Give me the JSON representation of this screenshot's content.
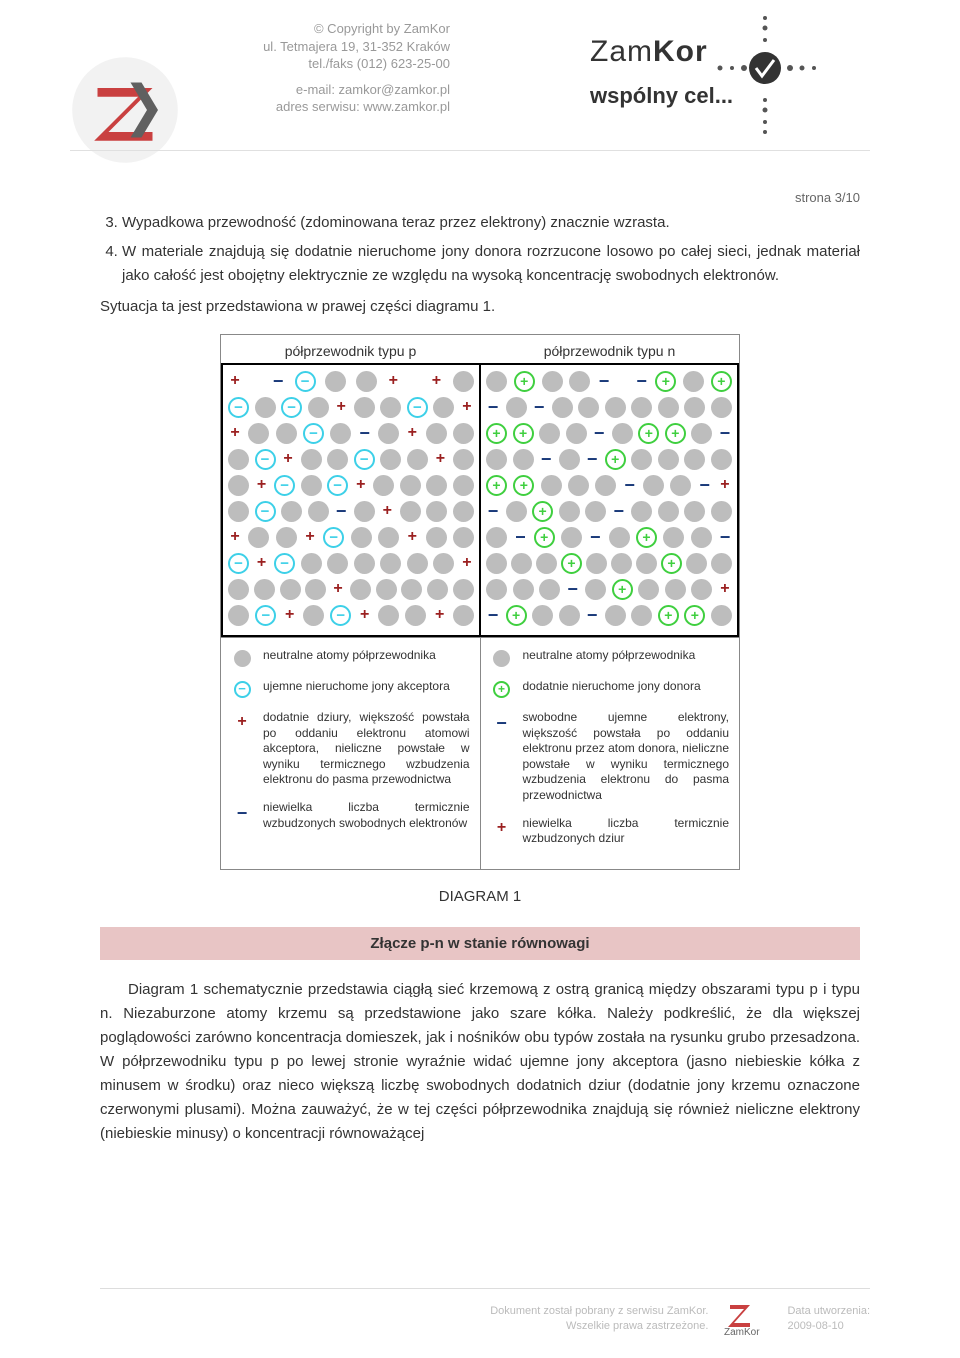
{
  "header": {
    "copyright_lines": [
      "© Copyright by ZamKor",
      "ul. Tetmajera 19, 31-352 Kraków",
      "tel./faks (012) 623-25-00"
    ],
    "contact_lines": [
      "e-mail: zamkor@zamkor.pl",
      "adres serwisu: www.zamkor.pl"
    ],
    "brand_part1": "Zam",
    "brand_part2": "Kor",
    "tagline": "wspólny cel..."
  },
  "page": {
    "page_indicator": "strona 3/10",
    "list_start": 3,
    "items": [
      "Wypadkowa przewodność (zdominowana teraz przez elektrony) znacznie wzrasta.",
      "W materiale znajdują się dodatnie nieruchome jony donora rozrzucone losowo po całej sieci, jednak materiał jako całość jest obojętny elektrycznie ze względu na wysoką koncentrację swobodnych elektronów."
    ],
    "after_list": "Sytuacja ta jest przedstawiona w prawej części diagramu 1."
  },
  "diagram": {
    "title_left": "półprzewodnik typu p",
    "title_right": "półprzewodnik typu n",
    "caption": "DIAGRAM 1",
    "colors": {
      "atom": "#bdbdbd",
      "acceptor": "#3dd0e8",
      "donor": "#3fcf3f",
      "hole": "#9b2020",
      "electron": "#1a3a7a",
      "border": "#000000"
    },
    "left_rows": [
      [
        "plus",
        "sp",
        "minus",
        "acc",
        "atom",
        "atom",
        "plus",
        "sp",
        "plus",
        "atom"
      ],
      [
        "acc",
        "atom",
        "acc",
        "atom",
        "plus",
        "atom",
        "atom",
        "acc",
        "atom",
        "plus"
      ],
      [
        "plus",
        "atom",
        "atom",
        "acc",
        "atom",
        "minus",
        "atom",
        "plus",
        "atom",
        "atom"
      ],
      [
        "atom",
        "acc",
        "plus",
        "atom",
        "atom",
        "acc",
        "atom",
        "atom",
        "plus",
        "atom"
      ],
      [
        "atom",
        "plus",
        "acc",
        "atom",
        "acc",
        "plus",
        "atom",
        "atom",
        "atom",
        "atom"
      ],
      [
        "atom",
        "acc",
        "atom",
        "atom",
        "minus",
        "atom",
        "plus",
        "atom",
        "atom",
        "atom"
      ],
      [
        "plus",
        "atom",
        "atom",
        "plus",
        "acc",
        "atom",
        "atom",
        "plus",
        "atom",
        "atom"
      ],
      [
        "acc",
        "plus",
        "acc",
        "atom",
        "atom",
        "atom",
        "atom",
        "atom",
        "atom",
        "plus"
      ],
      [
        "atom",
        "atom",
        "atom",
        "atom",
        "plus",
        "atom",
        "atom",
        "atom",
        "atom",
        "atom"
      ],
      [
        "atom",
        "acc",
        "plus",
        "atom",
        "acc",
        "plus",
        "atom",
        "atom",
        "plus",
        "atom"
      ]
    ],
    "right_rows": [
      [
        "atom",
        "don",
        "atom",
        "atom",
        "minus",
        "sp",
        "minus",
        "don",
        "atom",
        "don"
      ],
      [
        "minus",
        "atom",
        "minus",
        "atom",
        "atom",
        "atom",
        "atom",
        "atom",
        "atom",
        "atom"
      ],
      [
        "don",
        "don",
        "atom",
        "atom",
        "minus",
        "atom",
        "don",
        "don",
        "atom",
        "minus"
      ],
      [
        "atom",
        "atom",
        "minus",
        "atom",
        "minus",
        "don",
        "atom",
        "atom",
        "atom",
        "atom"
      ],
      [
        "don",
        "don",
        "atom",
        "atom",
        "atom",
        "minus",
        "atom",
        "atom",
        "minus",
        "plus"
      ],
      [
        "minus",
        "atom",
        "don",
        "atom",
        "atom",
        "minus",
        "atom",
        "atom",
        "atom",
        "atom"
      ],
      [
        "atom",
        "minus",
        "don",
        "atom",
        "minus",
        "atom",
        "don",
        "atom",
        "atom",
        "minus"
      ],
      [
        "atom",
        "atom",
        "atom",
        "don",
        "atom",
        "atom",
        "atom",
        "don",
        "atom",
        "atom"
      ],
      [
        "atom",
        "atom",
        "atom",
        "minus",
        "atom",
        "don",
        "atom",
        "atom",
        "atom",
        "plus"
      ],
      [
        "minus",
        "don",
        "atom",
        "atom",
        "minus",
        "atom",
        "atom",
        "don",
        "don",
        "atom"
      ]
    ],
    "legend_left": [
      {
        "icon": "atom",
        "text": "neutralne atomy półprzewodnika"
      },
      {
        "icon": "acc",
        "text": "ujemne nieruchome jony akceptora"
      },
      {
        "icon": "plus",
        "text": "dodatnie dziury, większość powstała po oddaniu elektronu atomowi akceptora, nieliczne powstałe w wyniku termicznego wzbudzenia elektronu do pasma przewodnictwa"
      },
      {
        "icon": "minus",
        "text": "niewielka liczba termicznie wzbudzonych swobodnych elektronów"
      }
    ],
    "legend_right": [
      {
        "icon": "atom",
        "text": "neutralne atomy półprzewodnika"
      },
      {
        "icon": "don",
        "text": "dodatnie nieruchome jony donora"
      },
      {
        "icon": "minus",
        "text": "swobodne ujemne elektrony, większość powstała po oddaniu elektronu przez atom donora, nieliczne powstałe w wyniku termicznego wzbudzenia elektronu do pasma przewodnictwa"
      },
      {
        "icon": "plus",
        "text": "niewielka liczba termicznie wzbudzonych dziur"
      }
    ]
  },
  "section": {
    "title": "Złącze p-n w stanie równowagi",
    "paragraph": "Diagram 1 schematycznie przedstawia ciągłą sieć krzemową z ostrą granicą między obszarami typu p i typu n. Niezaburzone atomy krzemu są przedstawione jako szare kółka. Należy podkreślić, że dla większej poglądowości zarówno koncentracja domieszek, jak i nośników obu typów została na rysunku grubo przesadzona. W półprzewodniku typu p po lewej stronie wyraźnie widać ujemne jony akceptora (jasno niebieskie kółka z minusem w środku) oraz nieco większą liczbę swobodnych dodatnich dziur (dodatnie jony krzemu oznaczone czerwonymi plusami). Można zauważyć, że w tej części półprzewodnika znajdują się również nieliczne elektrony (niebieskie minusy) o koncentracji równoważącej"
  },
  "footer": {
    "line1": "Dokument został pobrany z serwisu ZamKor.",
    "line2": "Wszelkie prawa zastrzeżone.",
    "brand": "ZamKor",
    "date_label": "Data utworzenia:",
    "date": "2009-08-10"
  }
}
